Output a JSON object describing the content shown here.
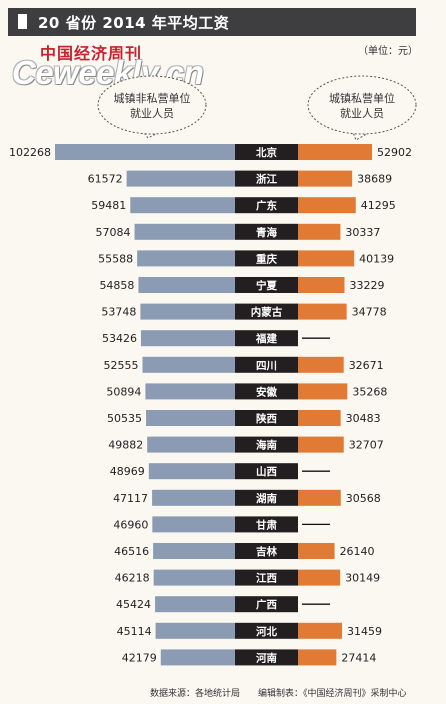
{
  "header": {
    "title": "20 省份 2014 年平均工资"
  },
  "unit": "（单位：元）",
  "brand": {
    "cn": "中国经济周刊",
    "web": "Ceweekly.cn"
  },
  "footer": {
    "source": "数据来源：各地统计局　　编辑制表：《中国经济周刊》采制中心"
  },
  "colors": {
    "left": "#8a9bb3",
    "right": "#e07a34",
    "label_bg": "#231f20",
    "header_bg": "#3e3e40"
  },
  "chart_data": {
    "type": "bar",
    "subtype": "butterfly",
    "categories": [
      "北京",
      "浙江",
      "广东",
      "青海",
      "重庆",
      "宁夏",
      "内蒙古",
      "福建",
      "四川",
      "安徽",
      "陕西",
      "海南",
      "山西",
      "湖南",
      "甘肃",
      "吉林",
      "江西",
      "广西",
      "河北",
      "河南"
    ],
    "series": [
      {
        "name": "城镇非私营单位就业人员",
        "values": [
          102268,
          61572,
          59481,
          57084,
          55588,
          54858,
          53748,
          53426,
          52555,
          50894,
          50535,
          49882,
          48969,
          47117,
          46960,
          46516,
          46218,
          45424,
          45114,
          42179
        ]
      },
      {
        "name": "城镇私营单位就业人员",
        "values": [
          52902,
          38689,
          41295,
          30337,
          40139,
          33229,
          34778,
          null,
          32671,
          35268,
          30483,
          32707,
          null,
          30568,
          null,
          26140,
          30149,
          null,
          31459,
          27414
        ]
      }
    ],
    "missing_label": "——",
    "title": "20 省份 2014 年平均工资"
  }
}
